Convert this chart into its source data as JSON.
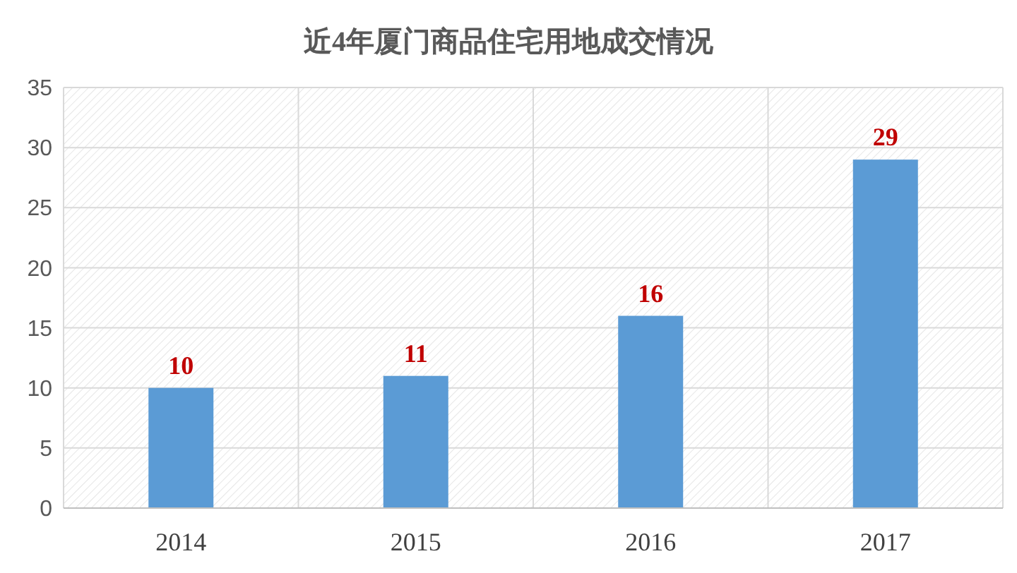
{
  "chart_data": {
    "type": "bar",
    "title": "近4年厦门商品住宅用地成交情况",
    "categories": [
      "2014",
      "2015",
      "2016",
      "2017"
    ],
    "values": [
      10,
      11,
      16,
      29
    ],
    "color": "#5b9bd5",
    "ylim": [
      0,
      35
    ],
    "yticks": [
      0,
      5,
      10,
      15,
      20,
      25,
      30,
      35
    ],
    "grid": true,
    "data_labels": true
  }
}
